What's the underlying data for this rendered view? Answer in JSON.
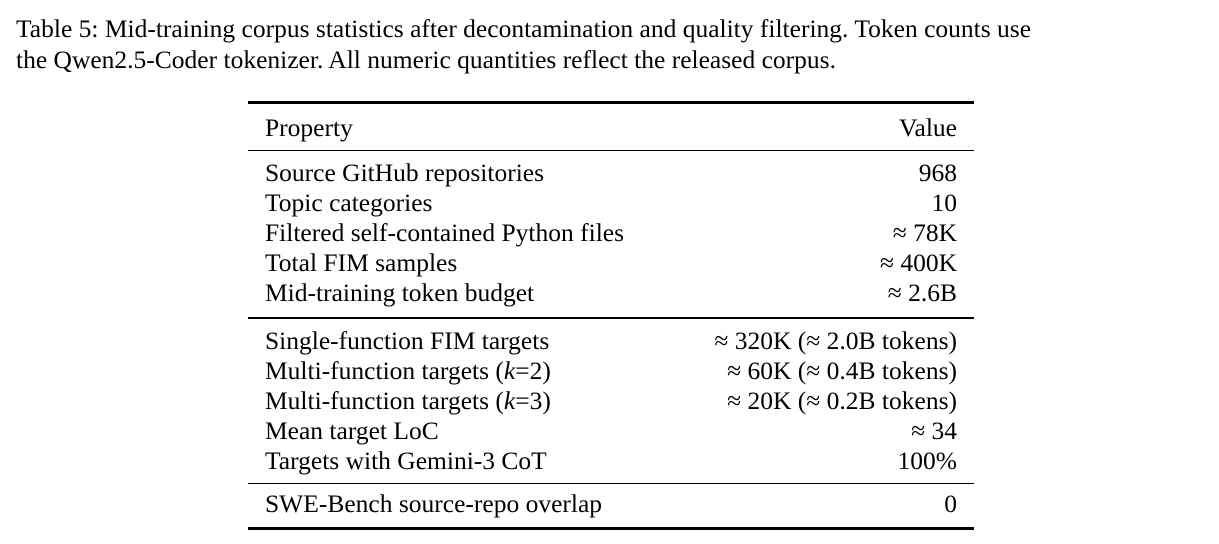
{
  "caption": {
    "line1": "Table 5: Mid-training corpus statistics after decontamination and quality filtering. Token counts use",
    "line2": "the Qwen2.5-Coder tokenizer. All numeric quantities reflect the released corpus."
  },
  "table": {
    "header": {
      "property": "Property",
      "value": "Value"
    },
    "groups": [
      {
        "rows": [
          {
            "property": "Source GitHub repositories",
            "value": "968"
          },
          {
            "property": "Topic categories",
            "value": "10"
          },
          {
            "property": "Filtered self-contained Python files",
            "value": "≈ 78K"
          },
          {
            "property": "Total FIM samples",
            "value": "≈ 400K"
          },
          {
            "property": "Mid-training token budget",
            "value": "≈ 2.6B"
          }
        ]
      },
      {
        "rows": [
          {
            "property": "Single-function FIM targets",
            "value": "≈ 320K (≈ 2.0B tokens)"
          },
          {
            "property_pre": "Multi-function targets (",
            "property_var": "k",
            "property_post": "=2)",
            "value": "≈ 60K (≈ 0.4B tokens)"
          },
          {
            "property_pre": "Multi-function targets (",
            "property_var": "k",
            "property_post": "=3)",
            "value": "≈ 20K (≈ 0.2B tokens)"
          },
          {
            "property": "Mean target LoC",
            "value": "≈ 34"
          },
          {
            "property": "Targets with Gemini-3 CoT",
            "value": "100%"
          }
        ]
      },
      {
        "rows": [
          {
            "property": "SWE-Bench source-repo overlap",
            "value": "0"
          }
        ]
      }
    ]
  }
}
